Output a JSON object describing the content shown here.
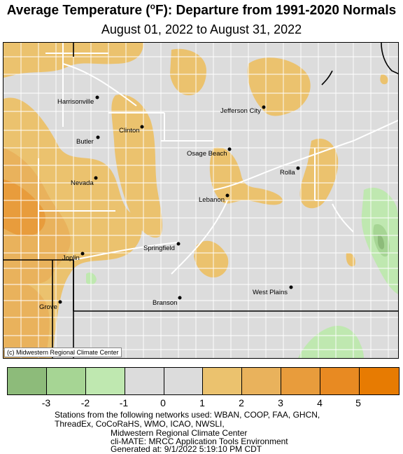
{
  "title": {
    "main_before": "Average Temperature (",
    "degree": "o",
    "main_after": "F): Departure from 1991-2020 Normals"
  },
  "subtitle": "August 01, 2022 to August 31, 2022",
  "copyright": "(c) Midwestern Regional Climate Center",
  "cities": [
    {
      "name": "Harrisonville"
    },
    {
      "name": "Jefferson City"
    },
    {
      "name": "Clinton"
    },
    {
      "name": "Butler"
    },
    {
      "name": "Osage Beach"
    },
    {
      "name": "Rolla"
    },
    {
      "name": "Nevada"
    },
    {
      "name": "Lebanon"
    },
    {
      "name": "Joplin"
    },
    {
      "name": "Springfield"
    },
    {
      "name": "West Plains"
    },
    {
      "name": "Grove"
    },
    {
      "name": "Branson"
    }
  ],
  "legend": {
    "colors": [
      "#8dbb7a",
      "#a6d594",
      "#bfe8b0",
      "#dcdcdc",
      "#dcdcdc",
      "#ebc26e",
      "#e9b25c",
      "#e89c3c",
      "#e88a22",
      "#e77b02"
    ],
    "ticks": [
      "-3",
      "-2",
      "-1",
      "0",
      "1",
      "2",
      "3",
      "4",
      "5"
    ]
  },
  "footnote": {
    "line1": "Stations from the following networks used: WBAN, COOP, FAA, GHCN,",
    "line2": "ThreadEx, CoCoRaHS, WMO, ICAO, NWSLI,",
    "line3": "Midwestern Regional Climate Center",
    "line4": "cli-MATE: MRCC Application Tools Environment",
    "line5": "Generated at: 9/1/2022 5:19:10 PM CDT"
  }
}
